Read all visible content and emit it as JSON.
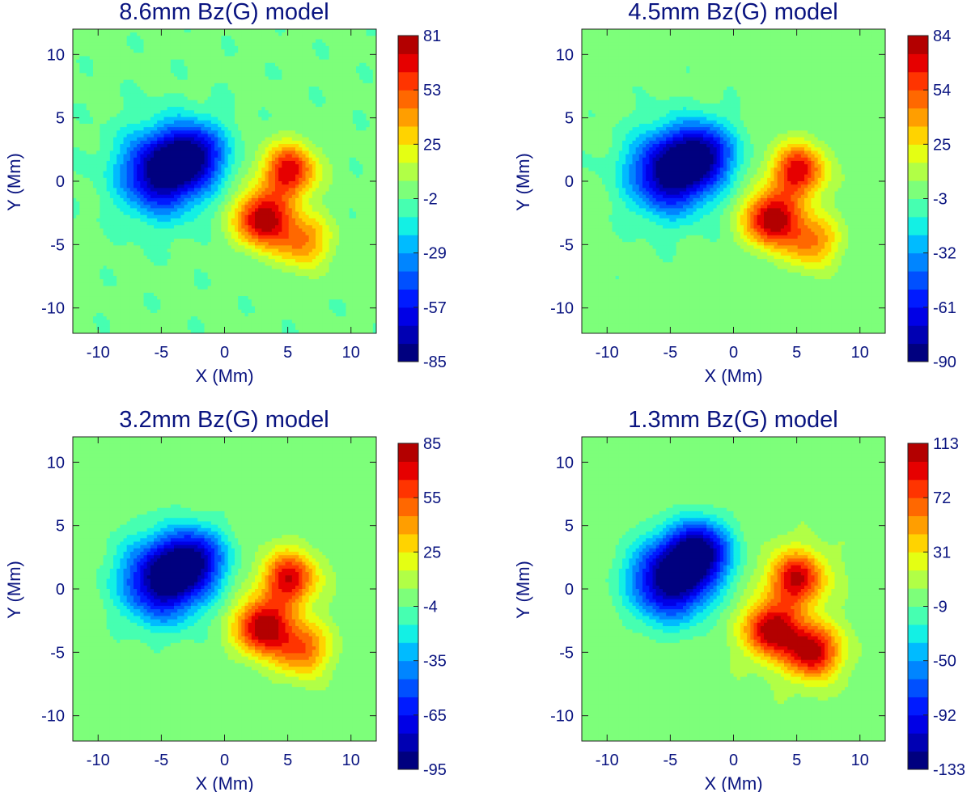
{
  "figure": {
    "colors": {
      "text": "#0a1480",
      "background_field": "#7dff7a",
      "colormap": [
        "#00007f",
        "#0000b3",
        "#0000e6",
        "#001bff",
        "#0050ff",
        "#0085ff",
        "#00bbff",
        "#13f0e4",
        "#46ffb1",
        "#7dff7a",
        "#b1ff46",
        "#e4ff13",
        "#ffd300",
        "#ff9e00",
        "#ff6800",
        "#ff3400",
        "#e60000",
        "#b30000"
      ]
    }
  },
  "chart_data": [
    {
      "type": "heatmap",
      "title": "8.6mm Bz(G) model",
      "xlabel": "X (Mm)",
      "ylabel": "Y (Mm)",
      "xlim": [
        -12,
        12
      ],
      "ylim": [
        -12,
        12
      ],
      "xticks": [
        "-10",
        "-5",
        "0",
        "5",
        "10"
      ],
      "yticks": [
        "10",
        "5",
        "0",
        "-5",
        "-10"
      ],
      "colorbar": {
        "min": -85,
        "max": 81,
        "tick_labels": [
          "81",
          "53",
          "25",
          "-2",
          "-29",
          "-57",
          "-85"
        ]
      },
      "features": [
        {
          "polarity": "negative",
          "x": -5.0,
          "y": 0.7,
          "peak_G": -85
        },
        {
          "polarity": "negative",
          "x": -2.3,
          "y": 2.2,
          "peak_G": -60
        },
        {
          "polarity": "positive",
          "x": 3.0,
          "y": -3.0,
          "peak_G": 81
        },
        {
          "polarity": "positive",
          "x": 5.1,
          "y": 0.8,
          "peak_G": 70
        },
        {
          "polarity": "positive",
          "x": 6.2,
          "y": -4.7,
          "peak_G": 45
        }
      ]
    },
    {
      "type": "heatmap",
      "title": "4.5mm Bz(G) model",
      "xlabel": "X (Mm)",
      "ylabel": "Y (Mm)",
      "xlim": [
        -12,
        12
      ],
      "ylim": [
        -12,
        12
      ],
      "xticks": [
        "-10",
        "-5",
        "0",
        "5",
        "10"
      ],
      "yticks": [
        "10",
        "5",
        "0",
        "-5",
        "-10"
      ],
      "colorbar": {
        "min": -90,
        "max": 84,
        "tick_labels": [
          "84",
          "54",
          "25",
          "-3",
          "-32",
          "-61",
          "-90"
        ]
      },
      "features": [
        {
          "polarity": "negative",
          "x": -5.0,
          "y": 0.7,
          "peak_G": -90
        },
        {
          "polarity": "negative",
          "x": -2.3,
          "y": 2.2,
          "peak_G": -62
        },
        {
          "polarity": "positive",
          "x": 3.0,
          "y": -3.0,
          "peak_G": 84
        },
        {
          "polarity": "positive",
          "x": 5.1,
          "y": 0.8,
          "peak_G": 72
        },
        {
          "polarity": "positive",
          "x": 6.2,
          "y": -4.7,
          "peak_G": 47
        }
      ]
    },
    {
      "type": "heatmap",
      "title": "3.2mm Bz(G) model",
      "xlabel": "X (Mm)",
      "ylabel": "Y (Mm)",
      "xlim": [
        -12,
        12
      ],
      "ylim": [
        -12,
        12
      ],
      "xticks": [
        "-10",
        "-5",
        "0",
        "5",
        "10"
      ],
      "yticks": [
        "10",
        "5",
        "0",
        "-5",
        "-10"
      ],
      "colorbar": {
        "min": -95,
        "max": 85,
        "tick_labels": [
          "85",
          "55",
          "25",
          "-4",
          "-35",
          "-65",
          "-95"
        ]
      },
      "features": [
        {
          "polarity": "negative",
          "x": -4.9,
          "y": 0.7,
          "peak_G": -95
        },
        {
          "polarity": "negative",
          "x": -2.3,
          "y": 2.4,
          "peak_G": -65
        },
        {
          "polarity": "positive",
          "x": 3.0,
          "y": -3.0,
          "peak_G": 85
        },
        {
          "polarity": "positive",
          "x": 5.1,
          "y": 0.8,
          "peak_G": 74
        },
        {
          "polarity": "positive",
          "x": 6.1,
          "y": -4.7,
          "peak_G": 55
        }
      ]
    },
    {
      "type": "heatmap",
      "title": "1.3mm Bz(G) model",
      "xlabel": "X (Mm)",
      "ylabel": "Y (Mm)",
      "xlim": [
        -12,
        12
      ],
      "ylim": [
        -12,
        12
      ],
      "xticks": [
        "-10",
        "-5",
        "0",
        "5",
        "10"
      ],
      "yticks": [
        "10",
        "5",
        "0",
        "-5",
        "-10"
      ],
      "colorbar": {
        "min": -133,
        "max": 113,
        "tick_labels": [
          "113",
          "72",
          "31",
          "-9",
          "-50",
          "-92",
          "-133"
        ]
      },
      "features": [
        {
          "polarity": "negative",
          "x": -5.0,
          "y": 0.7,
          "peak_G": -133
        },
        {
          "polarity": "negative",
          "x": -2.6,
          "y": 3.0,
          "peak_G": -110
        },
        {
          "polarity": "positive",
          "x": 3.0,
          "y": -3.2,
          "peak_G": 113
        },
        {
          "polarity": "positive",
          "x": 5.0,
          "y": 0.8,
          "peak_G": 105
        },
        {
          "polarity": "positive",
          "x": 6.2,
          "y": -4.9,
          "peak_G": 110
        }
      ]
    }
  ]
}
